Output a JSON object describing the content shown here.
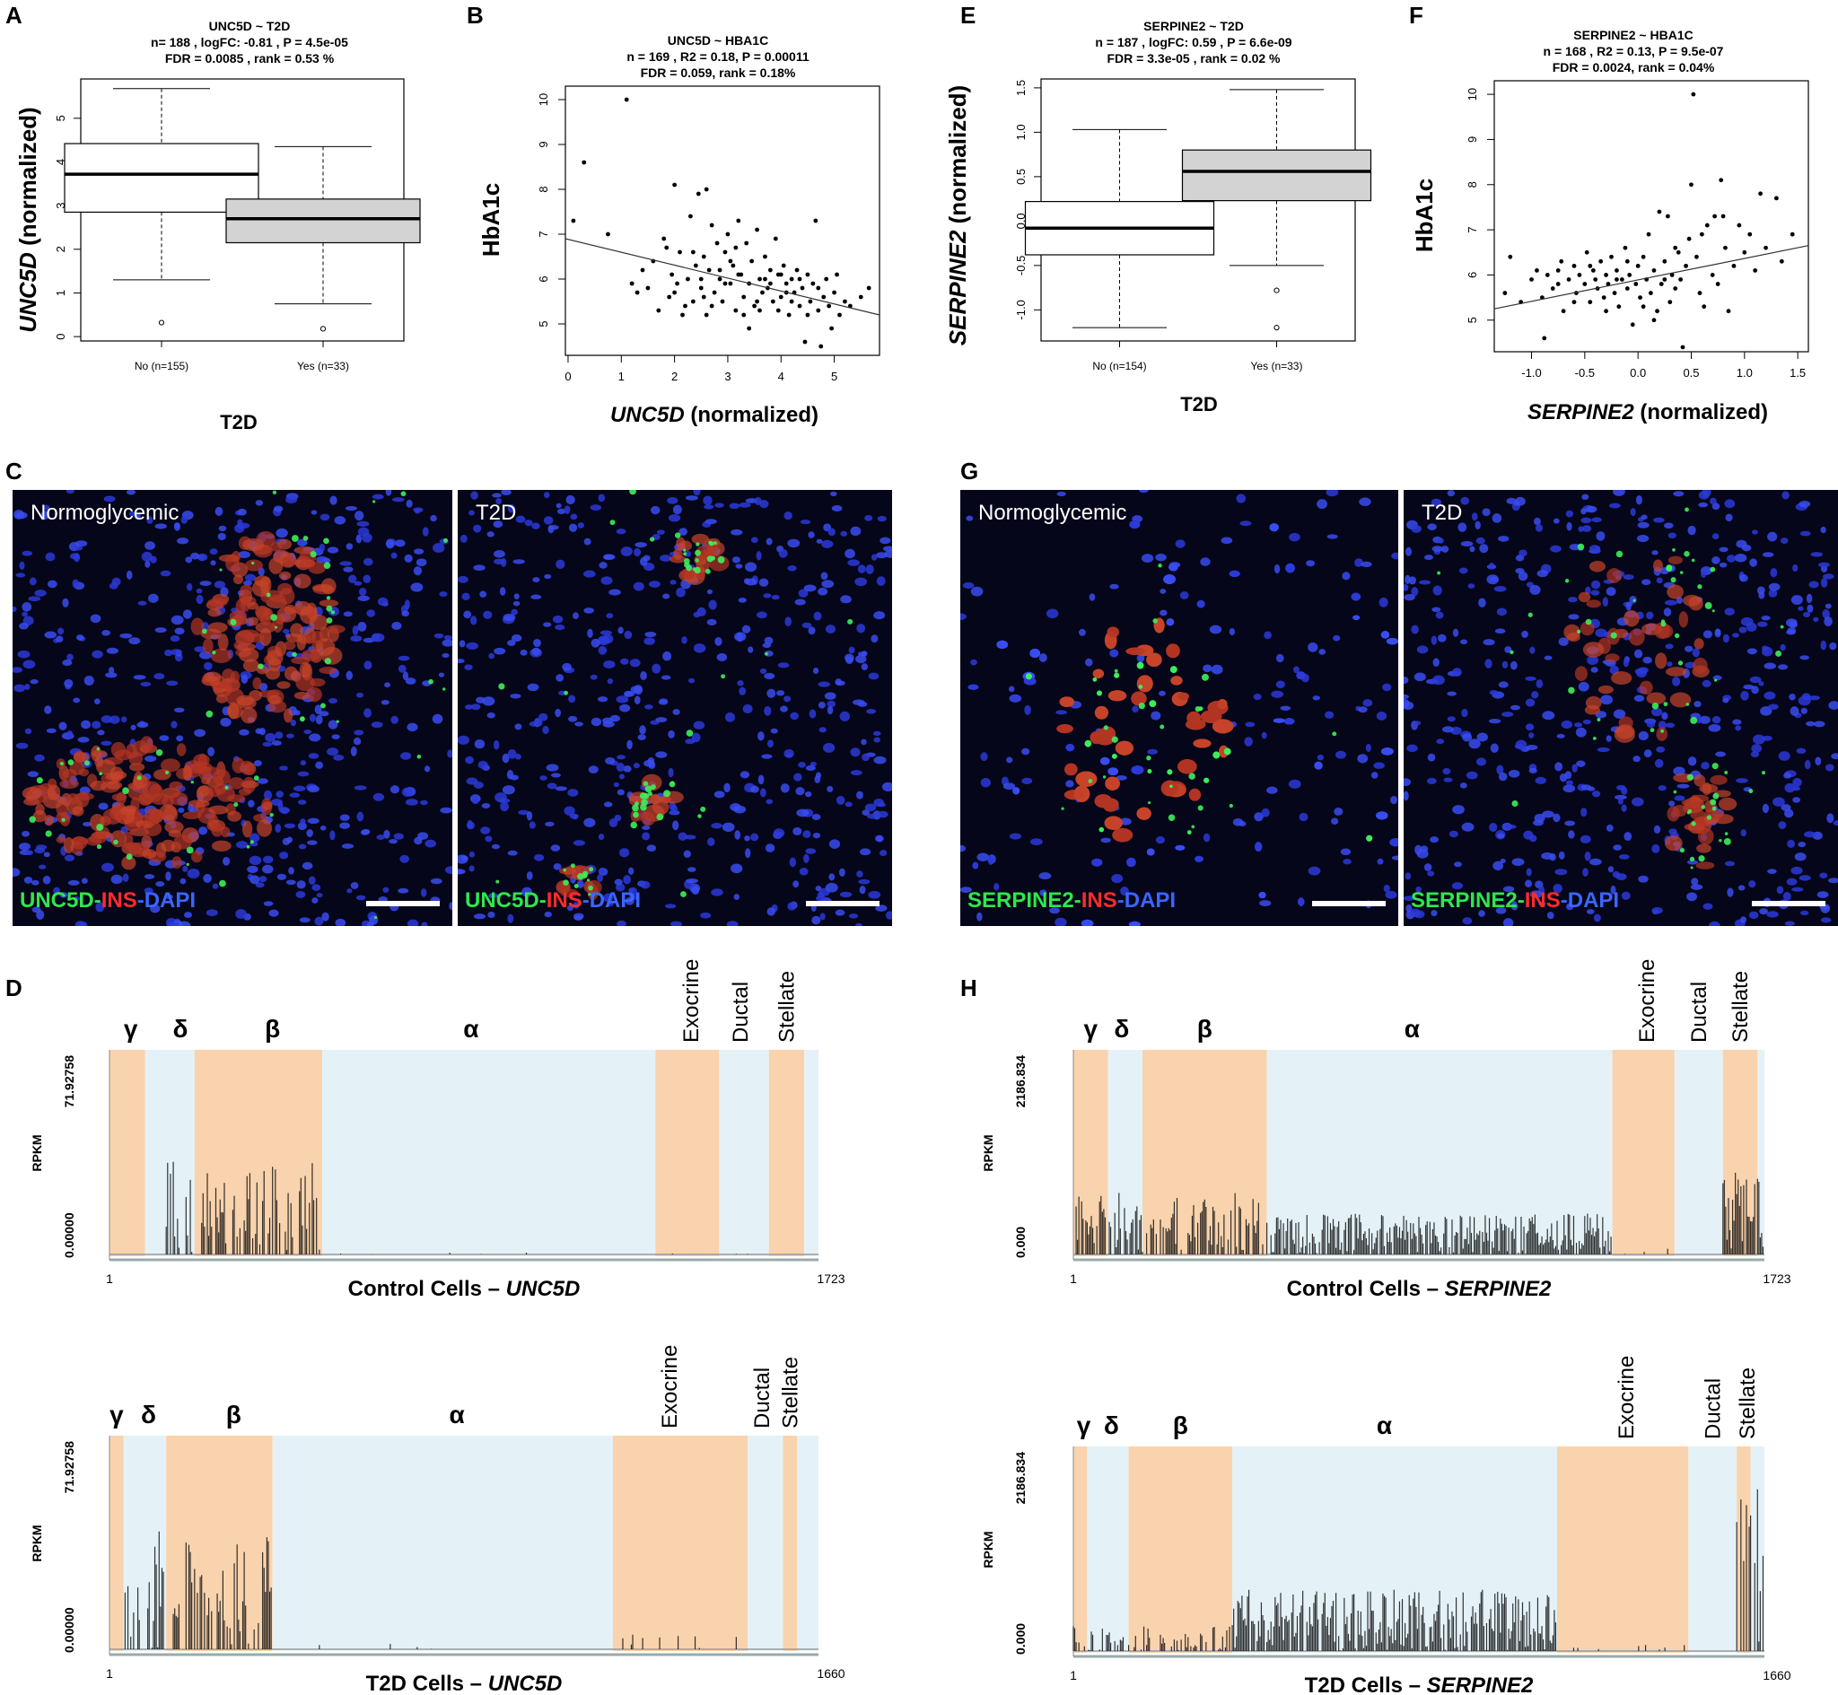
{
  "panels": {
    "A": {
      "letter": "A",
      "title_lines": [
        "UNC5D ~ T2D",
        "n= 188 , logFC: -0.81 ,  P =  4.5e-05",
        "FDR =  0.0085 , rank =  0.53 %"
      ],
      "ylabel": "UNC5D",
      "ylabel_suffix": "(normalized)",
      "xlabel": "T2D",
      "chart_data": {
        "type": "boxplot",
        "categories": [
          "No (n=155)",
          "Yes (n=33)"
        ],
        "boxes": [
          {
            "min": 1.3,
            "q1": 2.85,
            "median": 3.72,
            "q3": 4.42,
            "max": 5.68,
            "outliers": [
              0.32
            ],
            "fill": "#ffffff"
          },
          {
            "min": 0.75,
            "q1": 2.15,
            "median": 2.7,
            "q3": 3.15,
            "max": 4.35,
            "outliers": [
              0.18
            ],
            "fill": "#d3d3d3"
          }
        ],
        "yticks": [
          "0",
          "1",
          "2",
          "3",
          "4",
          "5"
        ],
        "ylim": [
          -0.1,
          5.9
        ]
      }
    },
    "B": {
      "letter": "B",
      "title_lines": [
        "UNC5D ~ HBA1C",
        "n = 169 , R2 = 0.18, P = 0.00011",
        "FDR = 0.059, rank = 0.18%"
      ],
      "ylabel": "HbA1c",
      "xlabel_italic": "UNC5D",
      "xlabel_suffix": "(normalized)",
      "chart_data": {
        "type": "scatter",
        "xticks": [
          "0",
          "1",
          "2",
          "3",
          "4",
          "5"
        ],
        "yticks": [
          "5",
          "6",
          "7",
          "8",
          "9",
          "10"
        ],
        "xlim": [
          -0.05,
          5.85
        ],
        "ylim": [
          4.3,
          10.3
        ],
        "fit_line": {
          "x": [
            -0.05,
            5.85
          ],
          "y": [
            6.9,
            5.2
          ]
        },
        "points": [
          [
            0.1,
            7.3
          ],
          [
            0.3,
            8.6
          ],
          [
            0.75,
            7.0
          ],
          [
            1.1,
            10.0
          ],
          [
            1.2,
            5.9
          ],
          [
            1.3,
            5.7
          ],
          [
            1.4,
            6.2
          ],
          [
            1.5,
            5.8
          ],
          [
            1.6,
            6.4
          ],
          [
            1.7,
            5.3
          ],
          [
            1.8,
            6.9
          ],
          [
            1.9,
            5.6
          ],
          [
            1.95,
            6.1
          ],
          [
            2.0,
            8.1
          ],
          [
            2.05,
            5.9
          ],
          [
            2.1,
            6.6
          ],
          [
            2.2,
            5.4
          ],
          [
            2.25,
            6.0
          ],
          [
            2.3,
            7.4
          ],
          [
            2.35,
            5.5
          ],
          [
            2.4,
            6.3
          ],
          [
            2.45,
            7.9
          ],
          [
            2.5,
            5.8
          ],
          [
            2.55,
            6.5
          ],
          [
            2.6,
            8.0
          ],
          [
            2.6,
            5.2
          ],
          [
            2.65,
            6.2
          ],
          [
            2.7,
            7.2
          ],
          [
            2.75,
            5.7
          ],
          [
            2.8,
            6.8
          ],
          [
            2.85,
            6.0
          ],
          [
            2.9,
            5.5
          ],
          [
            2.95,
            6.6
          ],
          [
            3.0,
            7.0
          ],
          [
            3.05,
            5.9
          ],
          [
            3.1,
            6.3
          ],
          [
            3.15,
            5.3
          ],
          [
            3.2,
            7.3
          ],
          [
            3.25,
            6.1
          ],
          [
            3.3,
            5.6
          ],
          [
            3.35,
            6.8
          ],
          [
            3.4,
            5.9
          ],
          [
            3.45,
            6.4
          ],
          [
            3.5,
            5.4
          ],
          [
            3.55,
            7.1
          ],
          [
            3.6,
            6.0
          ],
          [
            3.65,
            5.7
          ],
          [
            3.7,
            6.5
          ],
          [
            3.75,
            5.8
          ],
          [
            3.8,
            6.2
          ],
          [
            3.85,
            5.5
          ],
          [
            3.9,
            6.9
          ],
          [
            3.95,
            6.1
          ],
          [
            4.0,
            5.6
          ],
          [
            4.05,
            6.3
          ],
          [
            4.1,
            5.9
          ],
          [
            4.15,
            5.2
          ],
          [
            4.2,
            6.0
          ],
          [
            4.25,
            5.7
          ],
          [
            4.3,
            6.2
          ],
          [
            4.35,
            5.4
          ],
          [
            4.4,
            5.8
          ],
          [
            4.45,
            4.6
          ],
          [
            4.5,
            6.1
          ],
          [
            4.55,
            5.5
          ],
          [
            4.6,
            5.9
          ],
          [
            4.65,
            7.3
          ],
          [
            4.7,
            5.3
          ],
          [
            4.75,
            4.5
          ],
          [
            4.8,
            5.6
          ],
          [
            4.85,
            6.0
          ],
          [
            4.9,
            5.4
          ],
          [
            4.95,
            4.9
          ],
          [
            5.0,
            5.7
          ],
          [
            5.05,
            6.1
          ],
          [
            5.1,
            5.2
          ],
          [
            5.2,
            5.5
          ],
          [
            5.3,
            5.4
          ],
          [
            5.5,
            5.6
          ],
          [
            5.65,
            5.8
          ],
          [
            2.15,
            5.2
          ],
          [
            2.5,
            6.0
          ],
          [
            2.85,
            6.2
          ],
          [
            3.05,
            6.4
          ],
          [
            3.3,
            5.2
          ],
          [
            3.55,
            5.5
          ],
          [
            3.7,
            6.0
          ],
          [
            4.0,
            6.1
          ],
          [
            4.2,
            5.5
          ],
          [
            4.5,
            5.2
          ],
          [
            3.4,
            4.9
          ],
          [
            2.7,
            5.4
          ],
          [
            1.85,
            6.7
          ],
          [
            2.35,
            6.6
          ],
          [
            3.15,
            6.7
          ],
          [
            3.8,
            5.9
          ],
          [
            4.35,
            6.0
          ],
          [
            4.7,
            5.8
          ],
          [
            2.0,
            5.7
          ],
          [
            2.95,
            5.9
          ],
          [
            3.6,
            5.3
          ],
          [
            4.1,
            5.7
          ],
          [
            2.55,
            5.6
          ],
          [
            3.2,
            6.1
          ],
          [
            3.95,
            5.3
          ]
        ]
      }
    },
    "E": {
      "letter": "E",
      "title_lines": [
        "SERPINE2 ~ T2D",
        "n = 187 , logFC: 0.59 ,  P =  6.6e-09",
        "FDR =  3.3e-05 , rank =  0.02 %"
      ],
      "ylabel": "SERPINE2",
      "ylabel_suffix": "(normalized)",
      "xlabel": "T2D",
      "chart_data": {
        "type": "boxplot",
        "categories": [
          "No (n=154)",
          "Yes (n=33)"
        ],
        "boxes": [
          {
            "min": -1.2,
            "q1": -0.38,
            "median": -0.08,
            "q3": 0.22,
            "max": 1.03,
            "outliers": [],
            "fill": "#ffffff"
          },
          {
            "min": -0.5,
            "q1": 0.23,
            "median": 0.56,
            "q3": 0.8,
            "max": 1.48,
            "outliers": [
              -0.78,
              -1.2
            ],
            "fill": "#d3d3d3"
          }
        ],
        "yticks": [
          "-1.0",
          "-0.5",
          "0.0",
          "0.5",
          "1.0",
          "1.5"
        ],
        "ylim": [
          -1.35,
          1.6
        ]
      }
    },
    "F": {
      "letter": "F",
      "title_lines": [
        "SERPINE2 ~ HBA1C",
        "n = 168 , R2 = 0.13, P = 9.5e-07",
        "FDR = 0.0024, rank = 0.04%"
      ],
      "ylabel": "HbA1c",
      "xlabel_italic": "SERPINE2",
      "xlabel_suffix": "(normalized)",
      "chart_data": {
        "type": "scatter",
        "xticks": [
          "-1.0",
          "-0.5",
          "0.0",
          "0.5",
          "1.0",
          "1.5"
        ],
        "yticks": [
          "5",
          "6",
          "7",
          "8",
          "9",
          "10"
        ],
        "xlim": [
          -1.35,
          1.6
        ],
        "ylim": [
          4.3,
          10.3
        ],
        "fit_line": {
          "x": [
            -1.35,
            1.6
          ],
          "y": [
            5.25,
            6.65
          ]
        },
        "points": [
          [
            -1.25,
            5.6
          ],
          [
            -1.2,
            6.4
          ],
          [
            -1.1,
            5.4
          ],
          [
            -1.0,
            5.9
          ],
          [
            -0.95,
            6.1
          ],
          [
            -0.9,
            5.5
          ],
          [
            -0.88,
            4.6
          ],
          [
            -0.85,
            6.0
          ],
          [
            -0.8,
            5.7
          ],
          [
            -0.75,
            5.8
          ],
          [
            -0.72,
            6.3
          ],
          [
            -0.7,
            5.2
          ],
          [
            -0.65,
            5.9
          ],
          [
            -0.6,
            6.2
          ],
          [
            -0.58,
            5.6
          ],
          [
            -0.55,
            6.0
          ],
          [
            -0.5,
            5.8
          ],
          [
            -0.48,
            6.5
          ],
          [
            -0.45,
            5.4
          ],
          [
            -0.42,
            6.1
          ],
          [
            -0.4,
            5.9
          ],
          [
            -0.38,
            5.7
          ],
          [
            -0.35,
            6.3
          ],
          [
            -0.32,
            5.5
          ],
          [
            -0.3,
            6.0
          ],
          [
            -0.28,
            5.8
          ],
          [
            -0.25,
            6.4
          ],
          [
            -0.22,
            5.6
          ],
          [
            -0.2,
            6.1
          ],
          [
            -0.18,
            5.3
          ],
          [
            -0.15,
            5.9
          ],
          [
            -0.12,
            6.6
          ],
          [
            -0.1,
            5.7
          ],
          [
            -0.08,
            6.0
          ],
          [
            -0.05,
            4.9
          ],
          [
            -0.02,
            5.8
          ],
          [
            0.0,
            6.2
          ],
          [
            0.02,
            5.5
          ],
          [
            0.05,
            6.4
          ],
          [
            0.08,
            5.9
          ],
          [
            0.1,
            6.9
          ],
          [
            0.12,
            5.6
          ],
          [
            0.15,
            6.1
          ],
          [
            0.18,
            5.2
          ],
          [
            0.2,
            7.4
          ],
          [
            0.22,
            5.8
          ],
          [
            0.25,
            6.3
          ],
          [
            0.28,
            7.3
          ],
          [
            0.3,
            5.4
          ],
          [
            0.32,
            6.0
          ],
          [
            0.35,
            5.7
          ],
          [
            0.38,
            6.5
          ],
          [
            0.4,
            5.9
          ],
          [
            0.42,
            4.4
          ],
          [
            0.45,
            6.2
          ],
          [
            0.48,
            6.8
          ],
          [
            0.5,
            8.0
          ],
          [
            0.52,
            10.0
          ],
          [
            0.55,
            6.4
          ],
          [
            0.58,
            5.6
          ],
          [
            0.6,
            6.9
          ],
          [
            0.62,
            5.3
          ],
          [
            0.65,
            7.1
          ],
          [
            0.7,
            6.0
          ],
          [
            0.72,
            7.3
          ],
          [
            0.75,
            5.8
          ],
          [
            0.78,
            8.1
          ],
          [
            0.8,
            7.3
          ],
          [
            0.82,
            6.6
          ],
          [
            0.85,
            5.2
          ],
          [
            0.9,
            6.2
          ],
          [
            0.95,
            7.1
          ],
          [
            1.0,
            6.5
          ],
          [
            1.05,
            6.9
          ],
          [
            1.1,
            6.1
          ],
          [
            1.15,
            7.8
          ],
          [
            1.2,
            6.6
          ],
          [
            1.3,
            7.7
          ],
          [
            1.35,
            6.3
          ],
          [
            1.45,
            6.9
          ],
          [
            -0.6,
            5.4
          ],
          [
            -0.3,
            5.2
          ],
          [
            -0.1,
            6.3
          ],
          [
            0.15,
            5.0
          ],
          [
            0.35,
            6.6
          ],
          [
            -0.45,
            6.2
          ],
          [
            0.05,
            5.3
          ],
          [
            0.25,
            5.9
          ],
          [
            -0.75,
            6.1
          ],
          [
            -0.2,
            5.9
          ]
        ]
      }
    },
    "C": {
      "letter": "C",
      "left": {
        "label": "Normoglycemic",
        "legend": [
          "UNC5D",
          "-",
          "INS",
          "-",
          "DAPI"
        ]
      },
      "right": {
        "label": "T2D",
        "legend": [
          "UNC5D",
          "-",
          "INS",
          "-",
          "DAPI"
        ]
      }
    },
    "G": {
      "letter": "G",
      "left": {
        "label": "Normoglycemic",
        "legend": [
          "SERPINE2",
          "-",
          "INS",
          "-",
          "DAPI"
        ]
      },
      "right": {
        "label": "T2D",
        "legend": [
          "SERPINE2",
          "-",
          "INS",
          "-",
          "DAPI"
        ]
      }
    },
    "D": {
      "letter": "D",
      "top": {
        "ylabel": "RPKM",
        "ymax": "71.92758",
        "ymin": "0.00000",
        "xstart": "1",
        "xend": "1723",
        "caption_prefix": "Control Cells – ",
        "caption_gene": "UNC5D",
        "types": [
          "γ",
          "δ",
          "β",
          "α",
          "Exocrine",
          "Ductal",
          "Stellate"
        ]
      },
      "bottom": {
        "ylabel": "RPKM",
        "ymax": "71.92758",
        "ymin": "0.00000",
        "xstart": "1",
        "xend": "1660",
        "caption_prefix": "T2D Cells – ",
        "caption_gene": "UNC5D",
        "types": [
          "γ",
          "δ",
          "β",
          "α",
          "Exocrine",
          "Ductal",
          "Stellate"
        ]
      }
    },
    "H": {
      "letter": "H",
      "top": {
        "ylabel": "RPKM",
        "ymax": "2186.834",
        "ymin": "0.000",
        "xstart": "1",
        "xend": "1723",
        "caption_prefix": "Control Cells – ",
        "caption_gene": "SERPINE2",
        "types": [
          "γ",
          "δ",
          "β",
          "α",
          "Exocrine",
          "Ductal",
          "Stellate"
        ]
      },
      "bottom": {
        "ylabel": "RPKM",
        "ymax": "2186.834",
        "ymin": "0.000",
        "xstart": "1",
        "xend": "1660",
        "caption_prefix": "T2D Cells – ",
        "caption_gene": "SERPINE2",
        "types": [
          "γ",
          "δ",
          "β",
          "α",
          "Exocrine",
          "Ductal",
          "Stellate"
        ]
      }
    }
  },
  "colors": {
    "band_orange": "#f9d3ad",
    "band_blue": "#e4f2f8",
    "box_gray": "#d3d3d3",
    "green": "#2ee84a",
    "red": "#ff2b2b",
    "blue": "#3a66ff"
  }
}
